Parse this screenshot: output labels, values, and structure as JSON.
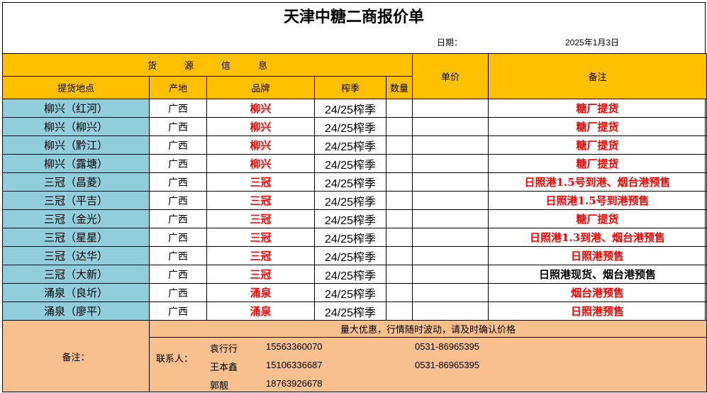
{
  "title": "天津中糖二商报价单",
  "date_label": "日期：",
  "date_value": "2025年1月3日",
  "header": {
    "group": "货　　　源　　　信　　　息",
    "price": "单价",
    "remark": "备注",
    "location": "提货地点",
    "origin": "产地",
    "brand": "品牌",
    "season": "榨季",
    "quantity": "数量"
  },
  "rows": [
    {
      "location": "柳兴（红河）",
      "origin": "广西",
      "brand": "柳兴",
      "season": "24/25榨季",
      "remark": "糖厂提货"
    },
    {
      "location": "柳兴（柳兴）",
      "origin": "广西",
      "brand": "柳兴",
      "season": "24/25榨季",
      "remark": "糖厂提货"
    },
    {
      "location": "柳兴（黔江）",
      "origin": "广西",
      "brand": "柳兴",
      "season": "24/25榨季",
      "remark": "糖厂提货"
    },
    {
      "location": "柳兴（露塘）",
      "origin": "广西",
      "brand": "柳兴",
      "season": "24/25榨季",
      "remark": "糖厂提货"
    },
    {
      "location": "三冠（昌菱）",
      "origin": "广西",
      "brand": "三冠",
      "season": "24/25榨季",
      "remark": "日照港1.5号到港、烟台港预售"
    },
    {
      "location": "三冠（平吉）",
      "origin": "广西",
      "brand": "三冠",
      "season": "24/25榨季",
      "remark": "日照港1.5号到港预售"
    },
    {
      "location": "三冠（金光）",
      "origin": "广西",
      "brand": "三冠",
      "season": "24/25榨季",
      "remark": "糖厂提货"
    },
    {
      "location": "三冠（星星）",
      "origin": "广西",
      "brand": "三冠",
      "season": "24/25榨季",
      "remark": "日照港1.3到港、烟台港预售"
    },
    {
      "location": "三冠（达华）",
      "origin": "广西",
      "brand": "三冠",
      "season": "24/25榨季",
      "remark": "日照港预售"
    },
    {
      "location": "三冠（大新）",
      "origin": "广西",
      "brand": "三冠",
      "season": "24/25榨季",
      "remark": "日照港现货、烟台港预售"
    },
    {
      "location": "涌泉（良圻）",
      "origin": "广西",
      "brand": "涌泉",
      "season": "24/25榨季",
      "remark": "烟台港预售"
    },
    {
      "location": "涌泉（廖平）",
      "origin": "广西",
      "brand": "涌泉",
      "season": "24/25榨季",
      "remark": "日照港预售"
    }
  ],
  "footer": {
    "label": "备注：",
    "notice": "量大优惠，行情随时波动，请及时确认价格",
    "contact_label": "联系人：",
    "contacts": [
      {
        "name": "袁行行",
        "mobile": "15563360070",
        "phone": "0531-86965395"
      },
      {
        "name": "王本鑫",
        "mobile": "15106336687",
        "phone": "0531-86965395"
      },
      {
        "name": "郭靓",
        "mobile": "18763926678",
        "phone": ""
      }
    ]
  },
  "colors": {
    "header": "#ffc000",
    "location": "#92cddc",
    "footer": "#f8bf8f",
    "accent": "#ff0000"
  }
}
